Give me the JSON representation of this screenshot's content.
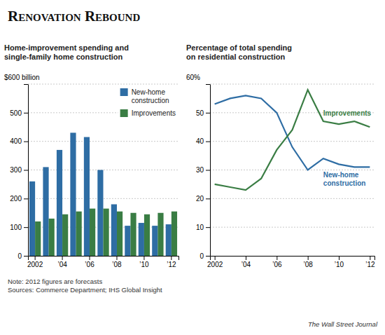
{
  "title": "Renovation Rebound",
  "annotations": [
    "Note: 2012 figures are forecasts\nSources: Commerce Department; IHS Global Insight",
    "The Wall Street Journal"
  ],
  "chart_data": [
    {
      "type": "bar",
      "subtitle": "Home-improvement spending and\nsingle-family home construction",
      "categories": [
        "2002",
        null,
        "’04",
        null,
        "’06",
        null,
        "’08",
        null,
        "’10",
        null,
        "’12"
      ],
      "series": [
        {
          "name": "New-home\nconstruction",
          "color": "#2e6da4",
          "values": [
            260,
            310,
            370,
            430,
            415,
            300,
            180,
            105,
            115,
            105,
            110
          ]
        },
        {
          "name": "Improvements",
          "color": "#3a7d44",
          "values": [
            120,
            130,
            145,
            155,
            165,
            165,
            155,
            150,
            145,
            150,
            155
          ]
        }
      ],
      "ylim": [
        0,
        600
      ],
      "yticks": [
        0,
        100,
        200,
        300,
        400,
        500,
        {
          "value": 600,
          "label": "$600 billion"
        }
      ],
      "grid": true,
      "legend": "upper right"
    },
    {
      "type": "line",
      "subtitle": "Percentage of total spending\non residential construction",
      "categories": [
        "2002",
        null,
        "’04",
        null,
        "’06",
        null,
        "’08",
        null,
        "’10",
        null,
        "’12"
      ],
      "series": [
        {
          "name": "New-home\nconstruction",
          "color": "#2e6da4",
          "values": [
            53,
            55,
            56,
            55,
            50,
            38,
            30,
            34,
            32,
            31,
            31
          ]
        },
        {
          "name": "Improvements",
          "color": "#3a7d44",
          "values": [
            25,
            24,
            23,
            27,
            37,
            44,
            58,
            47,
            46,
            47,
            45
          ]
        }
      ],
      "ylim": [
        0,
        60
      ],
      "yticks": [
        0,
        10,
        20,
        30,
        40,
        50,
        {
          "value": 60,
          "label": "60%"
        }
      ],
      "grid": true
    }
  ]
}
